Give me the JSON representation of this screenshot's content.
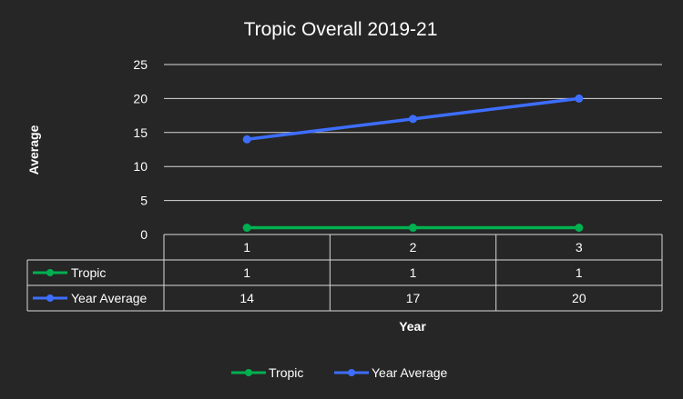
{
  "chart_data": {
    "type": "line",
    "title": "Tropic Overall 2019-21",
    "xlabel": "Year",
    "ylabel": "Average",
    "categories": [
      "1",
      "2",
      "3"
    ],
    "ylim": [
      0,
      25
    ],
    "yticks": [
      0,
      5,
      10,
      15,
      20,
      25
    ],
    "grid": true,
    "data_table": true,
    "legend_position": "bottom",
    "series": [
      {
        "name": "Tropic",
        "color": "#00b050",
        "values": [
          1,
          1,
          1
        ]
      },
      {
        "name": "Year Average",
        "color": "#3d6eff",
        "values": [
          14,
          17,
          20
        ]
      }
    ]
  }
}
